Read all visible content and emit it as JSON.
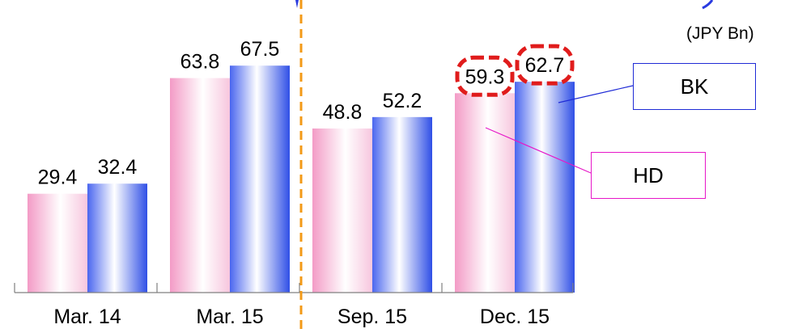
{
  "chart_data": {
    "type": "bar",
    "title": "",
    "unit": "(JPY Bn)",
    "categories": [
      "Mar. 14",
      "Mar. 15",
      "Sep. 15",
      "Dec. 15"
    ],
    "series": [
      {
        "name": "HD",
        "values": [
          29.4,
          63.8,
          48.8,
          59.3
        ],
        "color": "#f39bc6"
      },
      {
        "name": "BK",
        "values": [
          32.4,
          67.5,
          52.2,
          62.7
        ],
        "color": "#3c5ce8"
      }
    ],
    "ylim": [
      0,
      80
    ],
    "grid": false,
    "divider_after_category": 1,
    "highlighted": {
      "category": "Dec. 15",
      "color": "#e01c1c"
    },
    "callout_colors": {
      "BK": "#1f2bd6",
      "HD": "#e617c8"
    }
  }
}
